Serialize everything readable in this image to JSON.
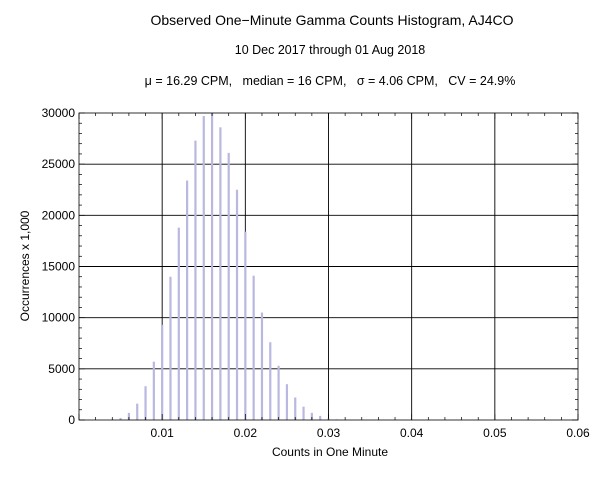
{
  "chart_data": {
    "type": "bar",
    "title": "Observed One−Minute Gamma Counts Histogram, AJ4CO",
    "subtitle": "10 Dec 2017 through 01 Aug 2018",
    "stats_line": "μ = 16.29 CPM,   median = 16 CPM,   σ = 4.06 CPM,   CV = 24.9%",
    "xlabel": "Counts in One Minute",
    "ylabel": "Occurrences x 1,000",
    "xlim": [
      0,
      0.06
    ],
    "ylim": [
      0,
      30000
    ],
    "x_ticks": [
      0.01,
      0.02,
      0.03,
      0.04,
      0.05,
      0.06
    ],
    "x_tick_labels": [
      "0.01",
      "0.02",
      "0.03",
      "0.04",
      "0.05",
      "0.06"
    ],
    "y_ticks": [
      0,
      5000,
      10000,
      15000,
      20000,
      25000,
      30000
    ],
    "y_tick_labels": [
      "0",
      "5000",
      "10000",
      "15000",
      "20000",
      "25000",
      "30000"
    ],
    "grid": true,
    "bar_color": "#b8b8e0",
    "x": [
      0.004,
      0.005,
      0.006,
      0.007,
      0.008,
      0.009,
      0.01,
      0.011,
      0.012,
      0.013,
      0.014,
      0.015,
      0.016,
      0.017,
      0.018,
      0.019,
      0.02,
      0.021,
      0.022,
      0.023,
      0.024,
      0.025,
      0.026,
      0.027,
      0.028,
      0.029,
      0.03,
      0.031
    ],
    "values": [
      60,
      200,
      700,
      1600,
      3300,
      5700,
      9300,
      14000,
      18800,
      23400,
      27300,
      29700,
      30000,
      28600,
      26100,
      22500,
      18400,
      14100,
      10500,
      7600,
      5300,
      3500,
      2200,
      1300,
      700,
      400,
      150,
      60
    ]
  }
}
